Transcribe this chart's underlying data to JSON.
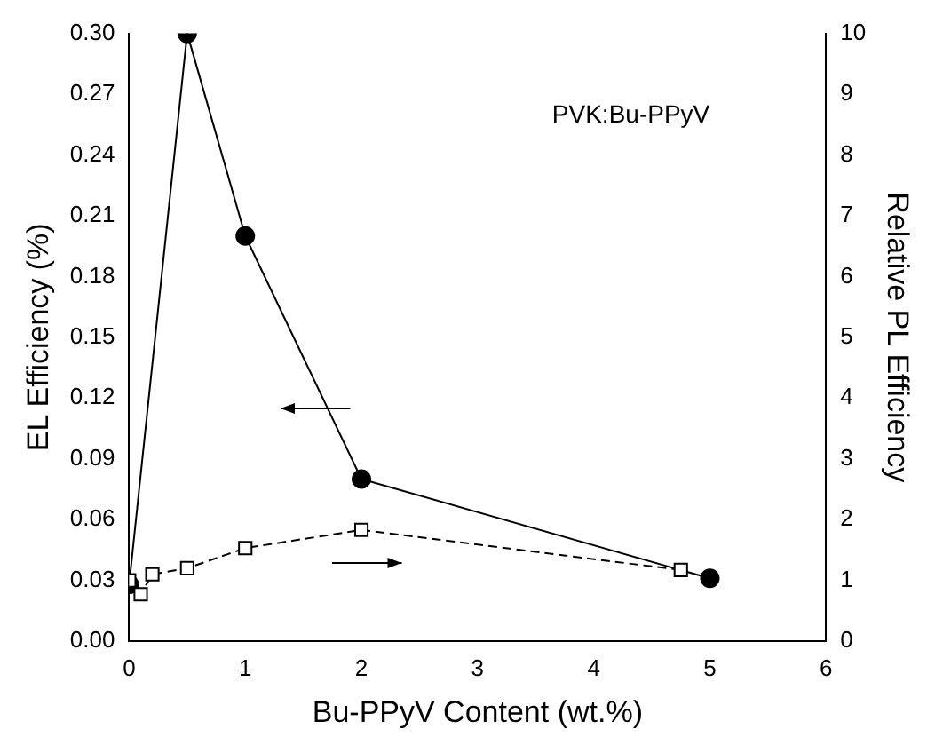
{
  "chart_data": {
    "type": "line",
    "xlabel": "Bu-PPyV Content (wt.%)",
    "ylabel": "EL Efficiency (%)",
    "y2label": "Relative PL Efficiency",
    "annotations": [
      "PVK:Bu-PPyV"
    ],
    "series": [
      {
        "x": [
          0,
          0.5,
          1,
          2,
          5
        ],
        "values": [
          0.028,
          0.3,
          0.2,
          0.08,
          0.031
        ],
        "color": "#000000",
        "marker": "circle",
        "line_style": "solid"
      },
      {
        "x": [
          0,
          0.1,
          0.2,
          0.5,
          1,
          2,
          4.75
        ],
        "values": [
          1.0,
          0.77,
          1.1,
          1.2,
          1.53,
          1.83,
          1.17
        ],
        "color": "#000000",
        "marker": "square",
        "line_style": "dashed",
        "axis": "y2"
      }
    ],
    "xlim": [
      0,
      6
    ],
    "xticks": [
      0,
      1,
      2,
      3,
      4,
      5,
      6
    ],
    "ylim": [
      0,
      0.3
    ],
    "yticks": [
      {
        "value": 0,
        "label": "0.00"
      },
      {
        "value": 0.03,
        "label": "0.03"
      },
      {
        "value": 0.06,
        "label": "0.06"
      },
      {
        "value": 0.09,
        "label": "0.09"
      },
      {
        "value": 0.12,
        "label": "0.12"
      },
      {
        "value": 0.15,
        "label": "0.15"
      },
      {
        "value": 0.18,
        "label": "0.18"
      },
      {
        "value": 0.21,
        "label": "0.21"
      },
      {
        "value": 0.24,
        "label": "0.24"
      },
      {
        "value": 0.27,
        "label": "0.27"
      },
      {
        "value": 0.3,
        "label": "0.30"
      }
    ],
    "y2lim": [
      0,
      10
    ],
    "y2ticks": [
      0,
      1,
      2,
      3,
      4,
      5,
      6,
      7,
      8,
      9,
      10
    ],
    "grid": false,
    "legend": false
  }
}
